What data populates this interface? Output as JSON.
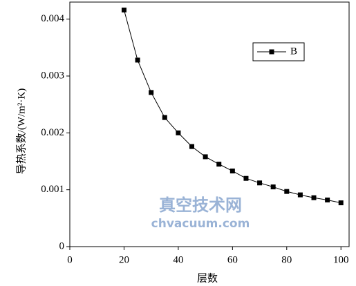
{
  "chart_data": {
    "type": "line",
    "xlabel": "层数",
    "ylabel": "导热系数/(W/m²·K)",
    "x": [
      20,
      25,
      30,
      35,
      40,
      45,
      50,
      55,
      60,
      65,
      70,
      75,
      80,
      85,
      90,
      95,
      100
    ],
    "series": [
      {
        "name": "B",
        "color": "#000000",
        "values": [
          0.00416,
          0.00328,
          0.00271,
          0.00227,
          0.002,
          0.00176,
          0.00158,
          0.00145,
          0.00133,
          0.0012,
          0.00112,
          0.00105,
          0.00097,
          0.00091,
          0.00086,
          0.00082,
          0.00077
        ]
      }
    ],
    "xlim": [
      0,
      103
    ],
    "ylim": [
      0,
      0.0043
    ],
    "xticks": [
      0,
      20,
      40,
      60,
      80,
      100
    ],
    "yticks": [
      0,
      0.001,
      0.002,
      0.003,
      0.004
    ],
    "legend": "upper right",
    "grid": false,
    "watermark": [
      "真空技术网",
      "chvacuum.com"
    ]
  }
}
